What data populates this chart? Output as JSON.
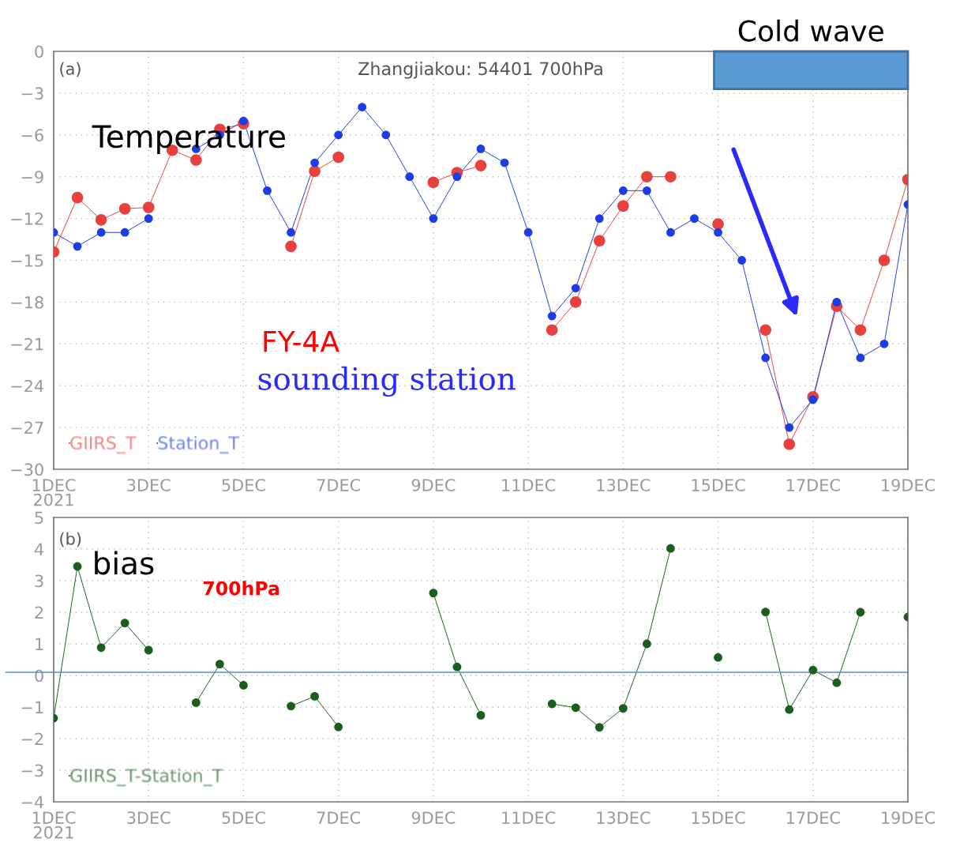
{
  "chart_data": [
    {
      "type": "line",
      "title": "Zhangjiakou: 54401 700hPa",
      "x": [
        "2021-12-01T00:00",
        "2021-12-01T12:00",
        "2021-12-02T00:00",
        "2021-12-02T12:00",
        "2021-12-03T00:00",
        "2021-12-03T12:00",
        "2021-12-04T00:00",
        "2021-12-04T12:00",
        "2021-12-05T00:00",
        "2021-12-05T12:00",
        "2021-12-06T00:00",
        "2021-12-06T12:00",
        "2021-12-07T00:00",
        "2021-12-07T12:00",
        "2021-12-08T00:00",
        "2021-12-08T12:00",
        "2021-12-09T00:00",
        "2021-12-09T12:00",
        "2021-12-10T00:00",
        "2021-12-10T12:00",
        "2021-12-11T00:00",
        "2021-12-11T12:00",
        "2021-12-12T00:00",
        "2021-12-12T12:00",
        "2021-12-13T00:00",
        "2021-12-13T12:00",
        "2021-12-14T00:00",
        "2021-12-14T12:00",
        "2021-12-15T00:00",
        "2021-12-15T12:00",
        "2021-12-16T00:00",
        "2021-12-16T12:00",
        "2021-12-17T00:00",
        "2021-12-17T12:00",
        "2021-12-18T00:00",
        "2021-12-18T12:00",
        "2021-12-19T00:00"
      ],
      "series": [
        {
          "name": "GIIRS_T",
          "color": "#e8403c",
          "values": [
            -14.4,
            -10.5,
            -12.1,
            -11.3,
            -11.2,
            -7.1,
            -7.8,
            -5.6,
            -5.2,
            null,
            -14,
            -8.6,
            -7.6,
            null,
            null,
            null,
            -9.4,
            -8.7,
            -8.2,
            null,
            null,
            -20,
            -18,
            -13.6,
            -11.1,
            -9,
            -9,
            null,
            -12.4,
            null,
            -20,
            -28.2,
            -24.8,
            -18.3,
            -20,
            -15,
            -9.2
          ]
        },
        {
          "name": "Station_T",
          "color": "#1c3ce6",
          "values": [
            -13,
            -14,
            -13,
            -13,
            -12,
            null,
            -7,
            -6,
            -5,
            -10,
            -13,
            -8,
            -6,
            -4,
            -6,
            -9,
            -12,
            -9,
            -7,
            -8,
            -13,
            -19,
            -17,
            -12,
            -10,
            -10,
            -13,
            -12,
            -13,
            -15,
            -22,
            -27,
            -25,
            -18,
            -22,
            -21,
            -11
          ]
        }
      ],
      "xlim": [
        "2021-12-01",
        "2021-12-19"
      ],
      "xticks": [
        {
          "value": "2021-12-01",
          "label": "1DEC\n2021"
        },
        {
          "value": "2021-12-03",
          "label": "3DEC"
        },
        {
          "value": "2021-12-05",
          "label": "5DEC"
        },
        {
          "value": "2021-12-07",
          "label": "7DEC"
        },
        {
          "value": "2021-12-09",
          "label": "9DEC"
        },
        {
          "value": "2021-12-11",
          "label": "11DEC"
        },
        {
          "value": "2021-12-13",
          "label": "13DEC"
        },
        {
          "value": "2021-12-15",
          "label": "15DEC"
        },
        {
          "value": "2021-12-17",
          "label": "17DEC"
        },
        {
          "value": "2021-12-19",
          "label": "19DEC"
        }
      ],
      "ylim": [
        -30,
        0
      ],
      "yticks": [
        -30,
        -27,
        -24,
        -21,
        -18,
        -15,
        -12,
        -9,
        -6,
        -3,
        0
      ],
      "grid": true,
      "legend": "bottom left",
      "marker": "circle",
      "line_style": "solid",
      "bands": [
        {
          "axis": "x",
          "from": "2021-12-14T22:00",
          "to": "2021-12-19",
          "label": "Cold wave",
          "color": "#5b9bd5"
        }
      ],
      "annotations": [
        "(a)",
        "Temperature",
        "FY-4A",
        "sounding station"
      ]
    },
    {
      "type": "line",
      "x": [
        "2021-12-01T00:00",
        "2021-12-01T12:00",
        "2021-12-02T00:00",
        "2021-12-02T12:00",
        "2021-12-03T00:00",
        "2021-12-03T12:00",
        "2021-12-04T00:00",
        "2021-12-04T12:00",
        "2021-12-05T00:00",
        "2021-12-05T12:00",
        "2021-12-06T00:00",
        "2021-12-06T12:00",
        "2021-12-07T00:00",
        "2021-12-07T12:00",
        "2021-12-08T00:00",
        "2021-12-08T12:00",
        "2021-12-09T00:00",
        "2021-12-09T12:00",
        "2021-12-10T00:00",
        "2021-12-10T12:00",
        "2021-12-11T00:00",
        "2021-12-11T12:00",
        "2021-12-12T00:00",
        "2021-12-12T12:00",
        "2021-12-13T00:00",
        "2021-12-13T12:00",
        "2021-12-14T00:00",
        "2021-12-14T12:00",
        "2021-12-15T00:00",
        "2021-12-15T12:00",
        "2021-12-16T00:00",
        "2021-12-16T12:00",
        "2021-12-17T00:00",
        "2021-12-17T12:00",
        "2021-12-18T00:00",
        "2021-12-18T12:00",
        "2021-12-19T00:00"
      ],
      "series": [
        {
          "name": "GIIRS_T-Station_T",
          "color": "#1b5e1b",
          "values": [
            -1.35,
            3.45,
            0.88,
            1.66,
            0.8,
            null,
            -0.86,
            0.36,
            -0.31,
            null,
            -0.97,
            -0.66,
            -1.63,
            null,
            null,
            null,
            2.61,
            0.27,
            -1.26,
            null,
            null,
            -0.9,
            -1.02,
            -1.64,
            -1.04,
            1.0,
            4.02,
            null,
            0.57,
            null,
            2.01,
            -1.08,
            0.17,
            -0.23,
            2.0,
            null,
            1.85
          ]
        }
      ],
      "xlim": [
        "2021-12-01",
        "2021-12-19"
      ],
      "xticks": [
        {
          "value": "2021-12-01",
          "label": "1DEC\n2021"
        },
        {
          "value": "2021-12-03",
          "label": "3DEC"
        },
        {
          "value": "2021-12-05",
          "label": "5DEC"
        },
        {
          "value": "2021-12-07",
          "label": "7DEC"
        },
        {
          "value": "2021-12-09",
          "label": "9DEC"
        },
        {
          "value": "2021-12-11",
          "label": "11DEC"
        },
        {
          "value": "2021-12-13",
          "label": "13DEC"
        },
        {
          "value": "2021-12-15",
          "label": "15DEC"
        },
        {
          "value": "2021-12-17",
          "label": "17DEC"
        },
        {
          "value": "2021-12-19",
          "label": "19DEC"
        }
      ],
      "ylim": [
        -4,
        5
      ],
      "yticks": [
        -4,
        -3,
        -2,
        -1,
        0,
        1,
        2,
        3,
        4,
        5
      ],
      "grid": true,
      "legend": "bottom left",
      "marker": "circle",
      "line_style": "solid",
      "ref_lines": [
        {
          "axis": "y",
          "value": 0.1,
          "color": "#4a90d9"
        }
      ],
      "annotations": [
        "(b)",
        "bias",
        "700hPa"
      ]
    }
  ]
}
